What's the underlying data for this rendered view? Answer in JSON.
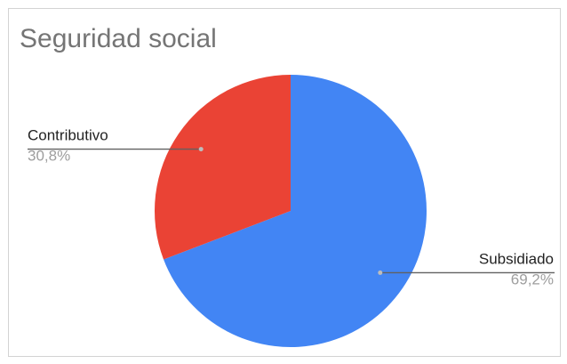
{
  "chart_data": {
    "type": "pie",
    "title": "Seguridad social",
    "slices": [
      {
        "label": "Subsidiado",
        "value": 69.2,
        "display": "69,2%",
        "color": "#4285f4"
      },
      {
        "label": "Contributivo",
        "value": 30.8,
        "display": "30,8%",
        "color": "#ea4335"
      }
    ],
    "legend": "none",
    "label_style": "outside-with-leader-lines"
  }
}
